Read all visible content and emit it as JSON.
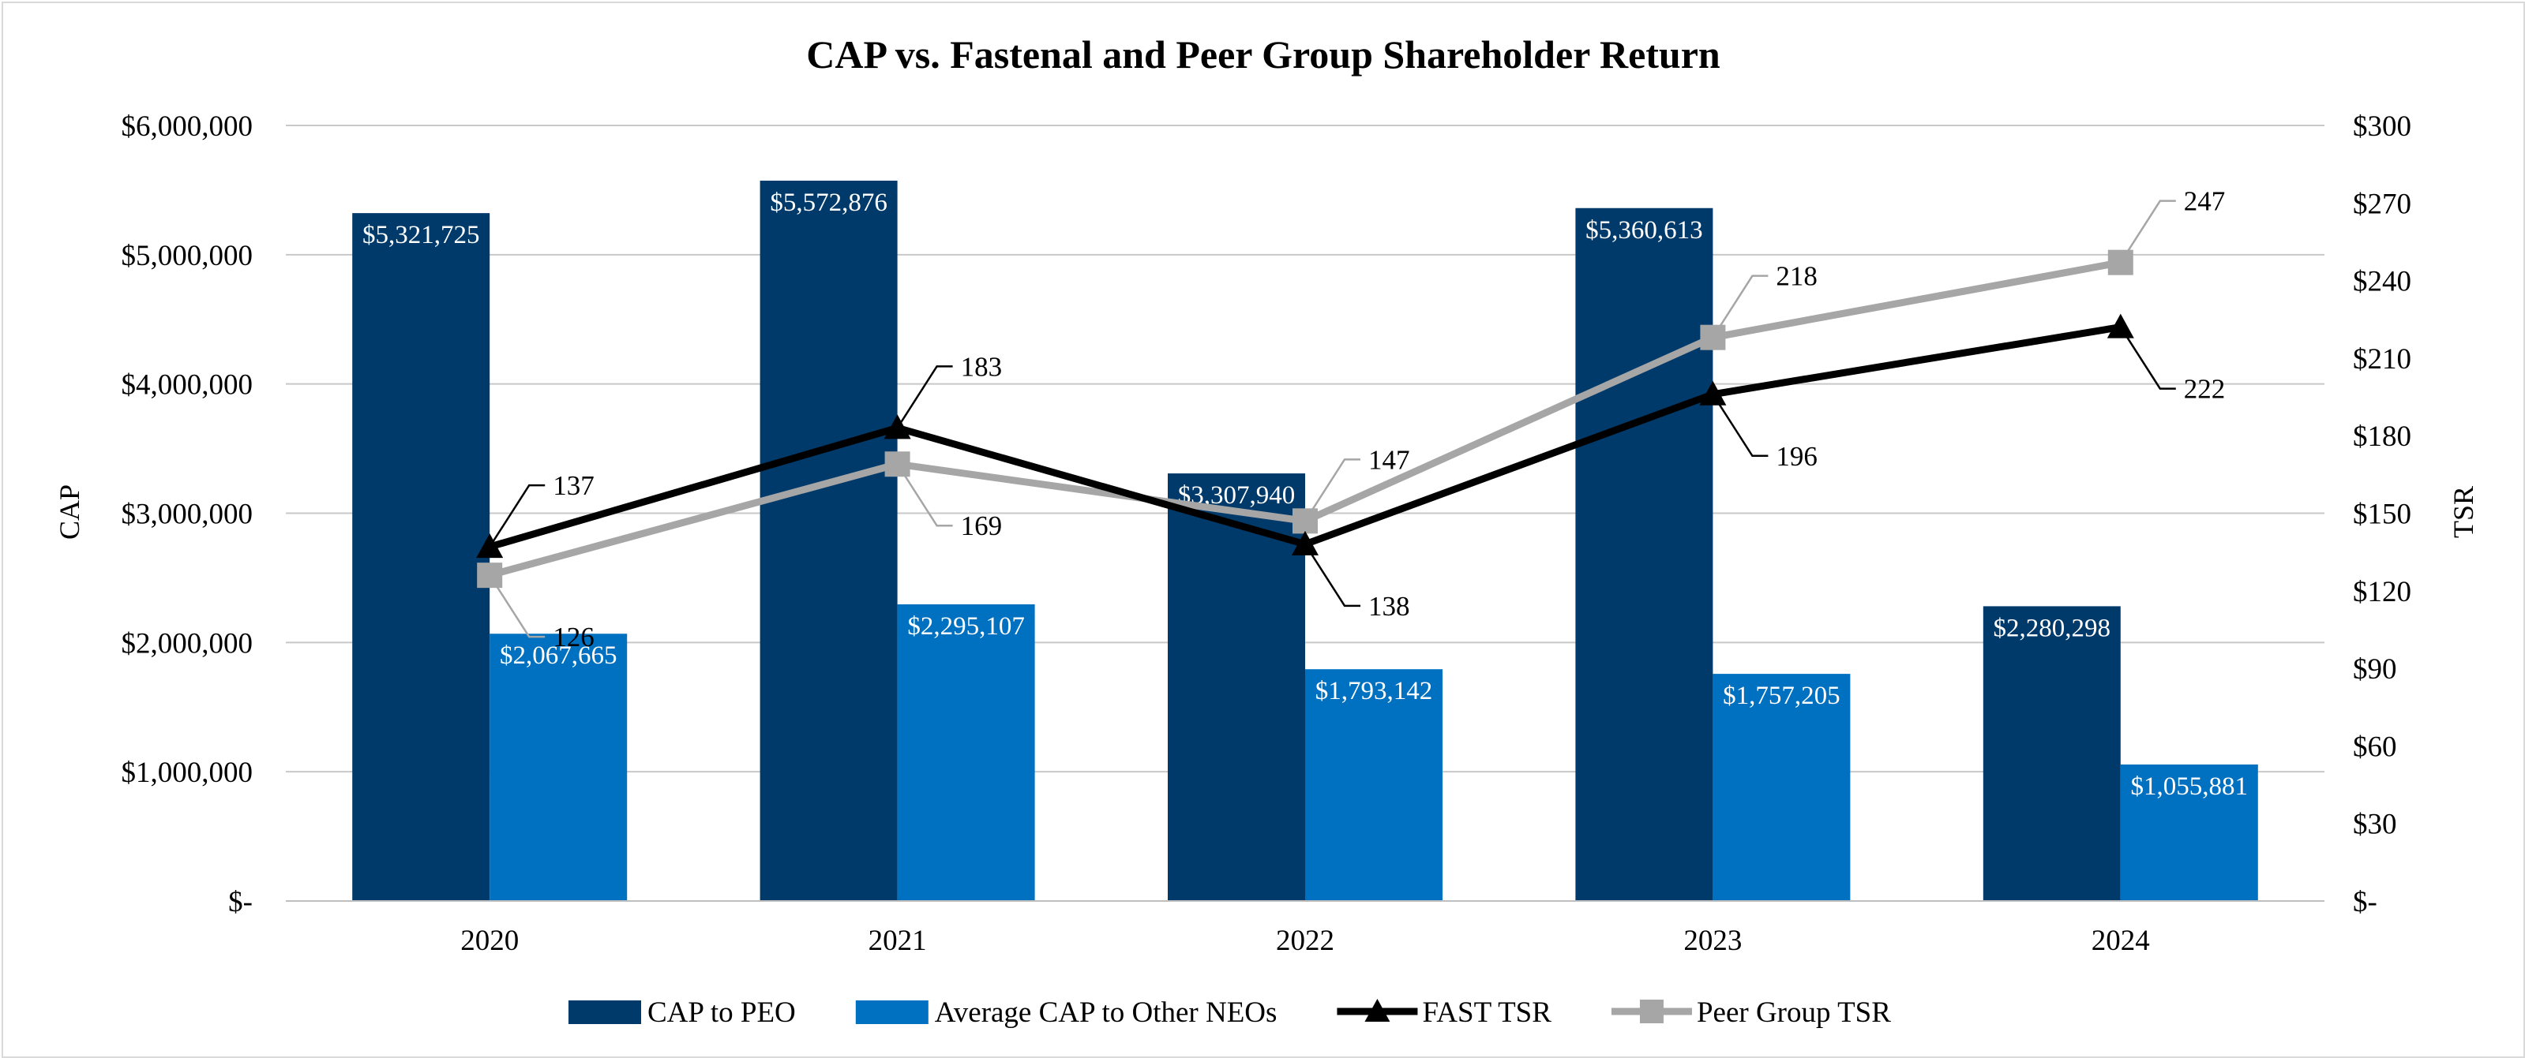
{
  "chart_data": {
    "type": "bar",
    "title": "CAP vs. Fastenal and Peer Group Shareholder Return",
    "categories": [
      "2020",
      "2021",
      "2022",
      "2023",
      "2024"
    ],
    "y_left": {
      "label": "CAP",
      "range": [
        0,
        6000000
      ],
      "ticks": [
        0,
        1000000,
        2000000,
        3000000,
        4000000,
        5000000,
        6000000
      ],
      "tick_labels": [
        "$-",
        "$1,000,000",
        "$2,000,000",
        "$3,000,000",
        "$4,000,000",
        "$5,000,000",
        "$6,000,000"
      ]
    },
    "y_right": {
      "label": "TSR",
      "range": [
        0,
        300
      ],
      "ticks": [
        0,
        30,
        60,
        90,
        120,
        150,
        180,
        210,
        240,
        270,
        300
      ],
      "tick_labels": [
        "$-",
        "$30",
        "$60",
        "$90",
        "$120",
        "$150",
        "$180",
        "$210",
        "$240",
        "$270",
        "$300"
      ]
    },
    "grid": true,
    "legend_position": "bottom",
    "bar_series": [
      {
        "name": "CAP to PEO",
        "color": "#003a6b",
        "values": [
          5321725,
          5572876,
          3307940,
          5360613,
          2280298
        ],
        "labels": [
          "$5,321,725",
          "$5,572,876",
          "$3,307,940",
          "$5,360,613",
          "$2,280,298"
        ]
      },
      {
        "name": "Average CAP to Other NEOs",
        "color": "#0070c0",
        "values": [
          2067665,
          2295107,
          1793142,
          1757205,
          1055881
        ],
        "labels": [
          "$2,067,665",
          "$2,295,107",
          "$1,793,142",
          "$1,757,205",
          "$1,055,881"
        ]
      }
    ],
    "line_series": [
      {
        "name": "FAST TSR",
        "color": "#000000",
        "marker": "triangle",
        "axis": "right",
        "values": [
          137,
          183,
          138,
          196,
          222
        ],
        "labels": [
          "137",
          "183",
          "138",
          "196",
          "222"
        ],
        "label_position": [
          "above",
          "above",
          "below",
          "below",
          "below"
        ]
      },
      {
        "name": "Peer Group TSR",
        "color": "#a6a6a6",
        "marker": "square",
        "axis": "right",
        "values": [
          126,
          169,
          147,
          218,
          247
        ],
        "labels": [
          "126",
          "169",
          "147",
          "218",
          "247"
        ],
        "label_position": [
          "below",
          "below",
          "above",
          "above",
          "above"
        ]
      }
    ]
  }
}
